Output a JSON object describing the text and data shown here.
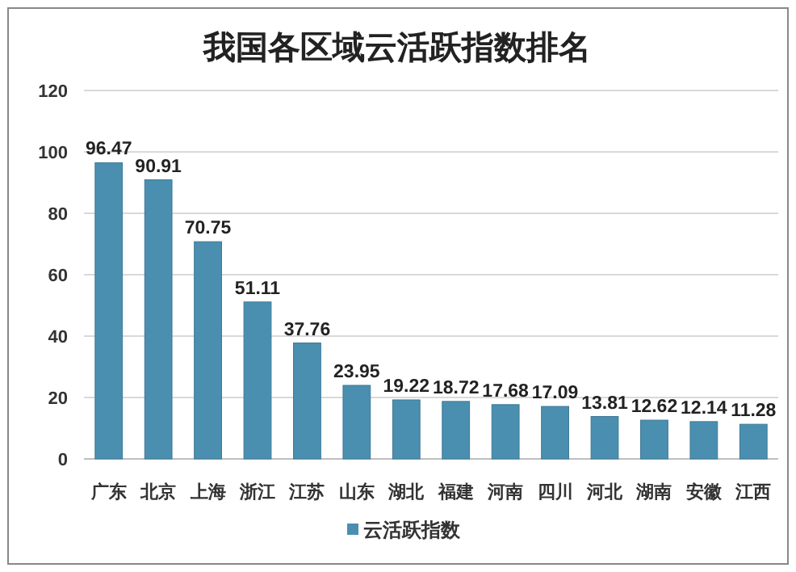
{
  "chart_data": {
    "type": "bar",
    "title": "我国各区域云活跃指数排名",
    "categories": [
      "广东",
      "北京",
      "上海",
      "浙江",
      "江苏",
      "山东",
      "湖北",
      "福建",
      "河南",
      "四川",
      "河北",
      "湖南",
      "安徽",
      "江西"
    ],
    "series": [
      {
        "name": "云活跃指数",
        "color": "#4a8fb0",
        "values": [
          96.47,
          90.91,
          70.75,
          51.11,
          37.76,
          23.95,
          19.22,
          18.72,
          17.68,
          17.09,
          13.81,
          12.62,
          12.14,
          11.28
        ]
      }
    ],
    "ylim": [
      0,
      120
    ],
    "yticks": [
      0,
      20,
      40,
      60,
      80,
      100,
      120
    ],
    "grid": "y",
    "legend": "bottom",
    "data_labels": true
  }
}
